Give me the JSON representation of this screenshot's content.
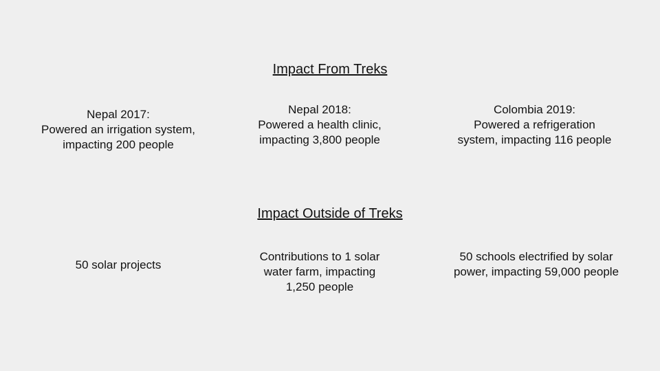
{
  "slide": {
    "background_color": "#efefef",
    "text_color": "#121212",
    "sections": [
      {
        "title": "Impact From Treks",
        "items": [
          {
            "lines": [
              "Nepal 2017:",
              "Powered an irrigation system,",
              "impacting 200 people"
            ]
          },
          {
            "lines": [
              "Nepal 2018:",
              "Powered a health clinic,",
              "impacting 3,800 people"
            ]
          },
          {
            "lines": [
              "Colombia 2019:",
              "Powered a refrigeration",
              "system, impacting 116 people"
            ]
          }
        ]
      },
      {
        "title": "Impact Outside of Treks",
        "items": [
          {
            "lines": [
              "50 solar projects"
            ]
          },
          {
            "lines": [
              "Contributions to 1 solar",
              "water farm, impacting",
              "1,250 people"
            ]
          },
          {
            "lines": [
              "50 schools electrified by solar",
              "power, impacting 59,000 people"
            ]
          }
        ]
      }
    ]
  }
}
